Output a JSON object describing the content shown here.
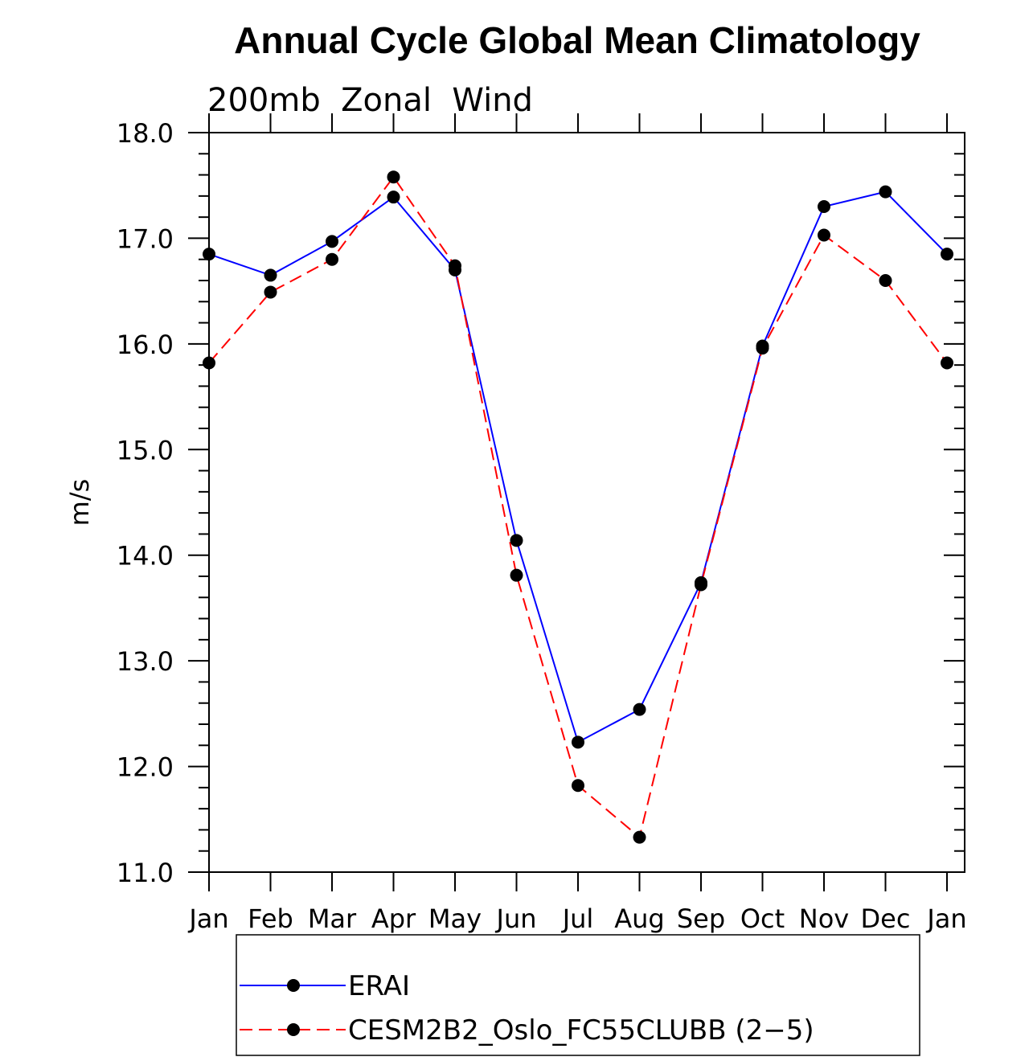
{
  "chart_data": {
    "type": "line",
    "title": "Annual Cycle Global Mean Climatology",
    "subtitle": "200mb  Zonal  Wind",
    "xlabel": "",
    "ylabel": "m/s",
    "categories": [
      "Jan",
      "Feb",
      "Mar",
      "Apr",
      "May",
      "Jun",
      "Jul",
      "Aug",
      "Sep",
      "Oct",
      "Nov",
      "Dec",
      "Jan"
    ],
    "ylim": [
      11.0,
      18.0
    ],
    "yticks": [
      "11.0",
      "12.0",
      "13.0",
      "14.0",
      "15.0",
      "16.0",
      "17.0",
      "18.0"
    ],
    "grid": false,
    "legend_position": "bottom",
    "series": [
      {
        "name": "ERAI",
        "color": "#0000ff",
        "style": "solid",
        "values": [
          16.85,
          16.65,
          16.97,
          17.39,
          16.7,
          14.14,
          12.23,
          12.54,
          13.74,
          15.98,
          17.3,
          17.44,
          16.85
        ]
      },
      {
        "name": "CESM2B2_Oslo_FC55CLUBB (2−5)",
        "color": "#ff0000",
        "style": "dashed",
        "values": [
          15.82,
          16.49,
          16.8,
          17.58,
          16.74,
          13.81,
          11.82,
          11.33,
          13.72,
          15.96,
          17.03,
          16.6,
          15.82
        ]
      }
    ]
  }
}
